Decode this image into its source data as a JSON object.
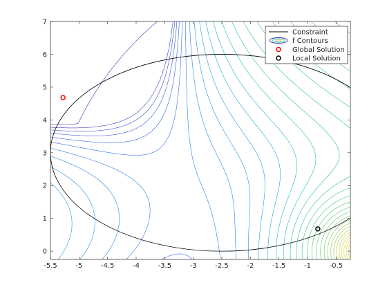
{
  "chart_data": {
    "type": "line",
    "title": "",
    "xlabel": "",
    "ylabel": "",
    "xlim": [
      -5.5,
      -0.25
    ],
    "ylim": [
      -0.25,
      7
    ],
    "grid": false,
    "legend_location": "top-right",
    "x_ticks": [
      -5.5,
      -5,
      -4.5,
      -4,
      -3.5,
      -3,
      -2.5,
      -2,
      -1.5,
      -1,
      -0.5
    ],
    "x_tick_labels": [
      "-5.5",
      "-5",
      "-4.5",
      "-4",
      "-3.5",
      "-3",
      "-2.5",
      "-2",
      "-1.5",
      "-1",
      "-0.5"
    ],
    "y_ticks": [
      0,
      1,
      2,
      3,
      4,
      5,
      6,
      7
    ],
    "y_tick_labels": [
      "0",
      "1",
      "2",
      "3",
      "4",
      "5",
      "6",
      "7"
    ],
    "constraint": {
      "name": "Constraint",
      "color": "#000000",
      "center": [
        -2.5,
        3
      ],
      "radius": 3
    },
    "contours": {
      "name": "f Contours",
      "colormap": [
        "#3e26a8",
        "#2f6ff3",
        "#12b9c3",
        "#4ac96e",
        "#a7c635",
        "#f9d927"
      ],
      "count": 30
    },
    "series": [
      {
        "name": "Global Solution",
        "marker": "circle",
        "color": "#ff0000",
        "x": [
          -5.28
        ],
        "y": [
          4.68
        ]
      },
      {
        "name": "Local Solution",
        "marker": "circle",
        "color": "#000000",
        "x": [
          -0.82
        ],
        "y": [
          0.68
        ]
      }
    ],
    "legend": [
      {
        "label": "Constraint",
        "kind": "line",
        "color": "#000000"
      },
      {
        "label": "f Contours",
        "kind": "contour",
        "color": "#12b9c3"
      },
      {
        "label": "Global Solution",
        "kind": "marker",
        "color": "#ff0000"
      },
      {
        "label": "Local Solution",
        "kind": "marker",
        "color": "#000000"
      }
    ]
  }
}
